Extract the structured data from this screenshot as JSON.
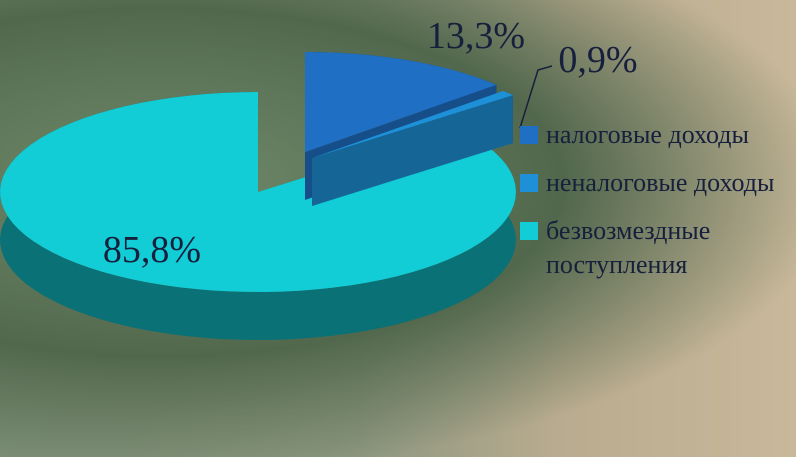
{
  "chart_data": {
    "type": "pie3d",
    "categories": [
      "налоговые доходы",
      "неналоговые доходы",
      "безвозмездные поступления"
    ],
    "values": [
      13.3,
      0.9,
      85.8
    ],
    "value_labels": [
      "13,3%",
      "0,9%",
      "85,8%"
    ],
    "colors": [
      "#1f6fc4",
      "#1e90d8",
      "#12cdd6"
    ],
    "legend": "right"
  }
}
